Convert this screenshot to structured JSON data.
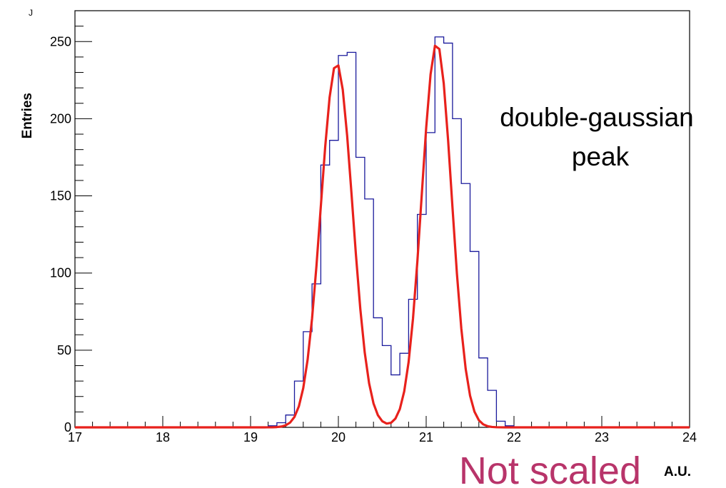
{
  "chart_data": {
    "type": "histogram",
    "xlabel": "A.U.",
    "ylabel": "Entries",
    "xlim": [
      17,
      24
    ],
    "ylim": [
      0,
      270
    ],
    "grid": false,
    "x_ticks": [
      17,
      18,
      19,
      20,
      21,
      22,
      23,
      24
    ],
    "y_ticks": [
      0,
      50,
      100,
      150,
      200,
      250
    ],
    "bin_width": 0.1,
    "histogram": {
      "bin_edges_start": 17.0,
      "counts": [
        0,
        0,
        0,
        0,
        0,
        0,
        0,
        0,
        0,
        0,
        0,
        0,
        0,
        0,
        0,
        0,
        0,
        0,
        0,
        0,
        0,
        0,
        1,
        3,
        8,
        30,
        62,
        93,
        170,
        186,
        241,
        243,
        175,
        148,
        71,
        53,
        34,
        48,
        83,
        138,
        191,
        253,
        249,
        200,
        158,
        114,
        45,
        24,
        4,
        1,
        0,
        0,
        0,
        0,
        0,
        0,
        0,
        0,
        0,
        0,
        0,
        0,
        0,
        0,
        0,
        0,
        0,
        0,
        0,
        0
      ],
      "color": "#1a1a9c"
    },
    "fit": {
      "function": "double-gaussian",
      "color": "#e8211c",
      "peak1": {
        "amplitude": 236,
        "mean": 19.98,
        "sigma": 0.18
      },
      "peak2": {
        "amplitude": 249,
        "mean": 21.12,
        "sigma": 0.17
      }
    },
    "annotations": [
      {
        "text": "double-gaussian"
      },
      {
        "text": "peak"
      }
    ],
    "overlay_text": {
      "text": "Not scaled",
      "color": "#b8346a"
    },
    "corner_mark": "J"
  }
}
